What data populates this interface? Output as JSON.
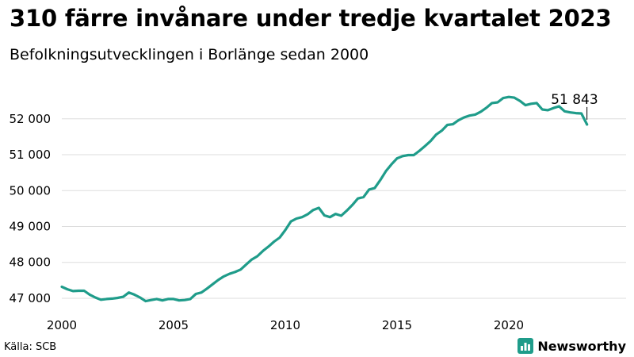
{
  "header": {
    "title": "310 färre invånare under tredje kvartalet 2023",
    "subtitle": "Befolkningsutvecklingen i Borlänge sedan 2000"
  },
  "footer": {
    "source": "Källa: SCB",
    "brand": "Newsworthy"
  },
  "colors": {
    "line": "#1f9c8a",
    "grid": "#dddddd",
    "brand": "#1f9c8a"
  },
  "chart_data": {
    "type": "line",
    "title": "310 färre invånare under tredje kvartalet 2023",
    "subtitle": "Befolkningsutvecklingen i Borlänge sedan 2000",
    "xlabel": "",
    "ylabel": "",
    "x_ticks": [
      2000,
      2005,
      2010,
      2015,
      2020
    ],
    "y_ticks": [
      {
        "value": 47000,
        "label": "47 000"
      },
      {
        "value": 48000,
        "label": "48 000"
      },
      {
        "value": 49000,
        "label": "49 000"
      },
      {
        "value": 50000,
        "label": "50 000"
      },
      {
        "value": 51000,
        "label": "51 000"
      },
      {
        "value": 52000,
        "label": "52 000"
      }
    ],
    "xlim": [
      2000,
      2025.25
    ],
    "ylim": [
      46800,
      52880
    ],
    "grid": true,
    "annotation": {
      "label": "51 843",
      "x": 2023.5,
      "y": 51843
    },
    "series": [
      {
        "x": [
          2000,
          2000.25,
          2000.5,
          2000.75,
          2001,
          2001.25,
          2001.5,
          2001.75,
          2002,
          2002.25,
          2002.5,
          2002.75,
          2003,
          2003.25,
          2003.5,
          2003.75,
          2004,
          2004.25,
          2004.5,
          2004.75,
          2005,
          2005.25,
          2005.5,
          2005.75,
          2006,
          2006.25,
          2006.5,
          2006.75,
          2007,
          2007.25,
          2007.5,
          2007.75,
          2008,
          2008.25,
          2008.5,
          2008.75,
          2009,
          2009.25,
          2009.5,
          2009.75,
          2010,
          2010.25,
          2010.5,
          2010.75,
          2011,
          2011.25,
          2011.5,
          2011.75,
          2012,
          2012.25,
          2012.5,
          2012.75,
          2013,
          2013.25,
          2013.5,
          2013.75,
          2014,
          2014.25,
          2014.5,
          2014.75,
          2015,
          2015.25,
          2015.5,
          2015.75,
          2016,
          2016.25,
          2016.5,
          2016.75,
          2017,
          2017.25,
          2017.5,
          2017.75,
          2018,
          2018.25,
          2018.5,
          2018.75,
          2019,
          2019.25,
          2019.5,
          2019.75,
          2020,
          2020.25,
          2020.5,
          2020.75,
          2021,
          2021.25,
          2021.5,
          2021.75,
          2022,
          2022.25,
          2022.5,
          2022.75,
          2023,
          2023.25,
          2023.5
        ],
        "values": [
          47320,
          47250,
          47200,
          47210,
          47210,
          47100,
          47020,
          46960,
          46980,
          46990,
          47010,
          47040,
          47160,
          47100,
          47020,
          46920,
          46950,
          46980,
          46940,
          46980,
          46980,
          46940,
          46950,
          46980,
          47120,
          47160,
          47270,
          47390,
          47510,
          47610,
          47680,
          47730,
          47800,
          47940,
          48080,
          48170,
          48320,
          48440,
          48580,
          48690,
          48900,
          49140,
          49220,
          49260,
          49340,
          49460,
          49520,
          49310,
          49260,
          49350,
          49300,
          49440,
          49600,
          49780,
          49820,
          50030,
          50070,
          50290,
          50540,
          50730,
          50900,
          50960,
          50990,
          50990,
          51110,
          51240,
          51380,
          51560,
          51670,
          51830,
          51850,
          51960,
          52040,
          52090,
          52120,
          52200,
          52310,
          52440,
          52460,
          52580,
          52610,
          52590,
          52500,
          52380,
          52420,
          52440,
          52260,
          52240,
          52300,
          52350,
          52210,
          52180,
          52160,
          52150,
          51843
        ]
      }
    ]
  }
}
